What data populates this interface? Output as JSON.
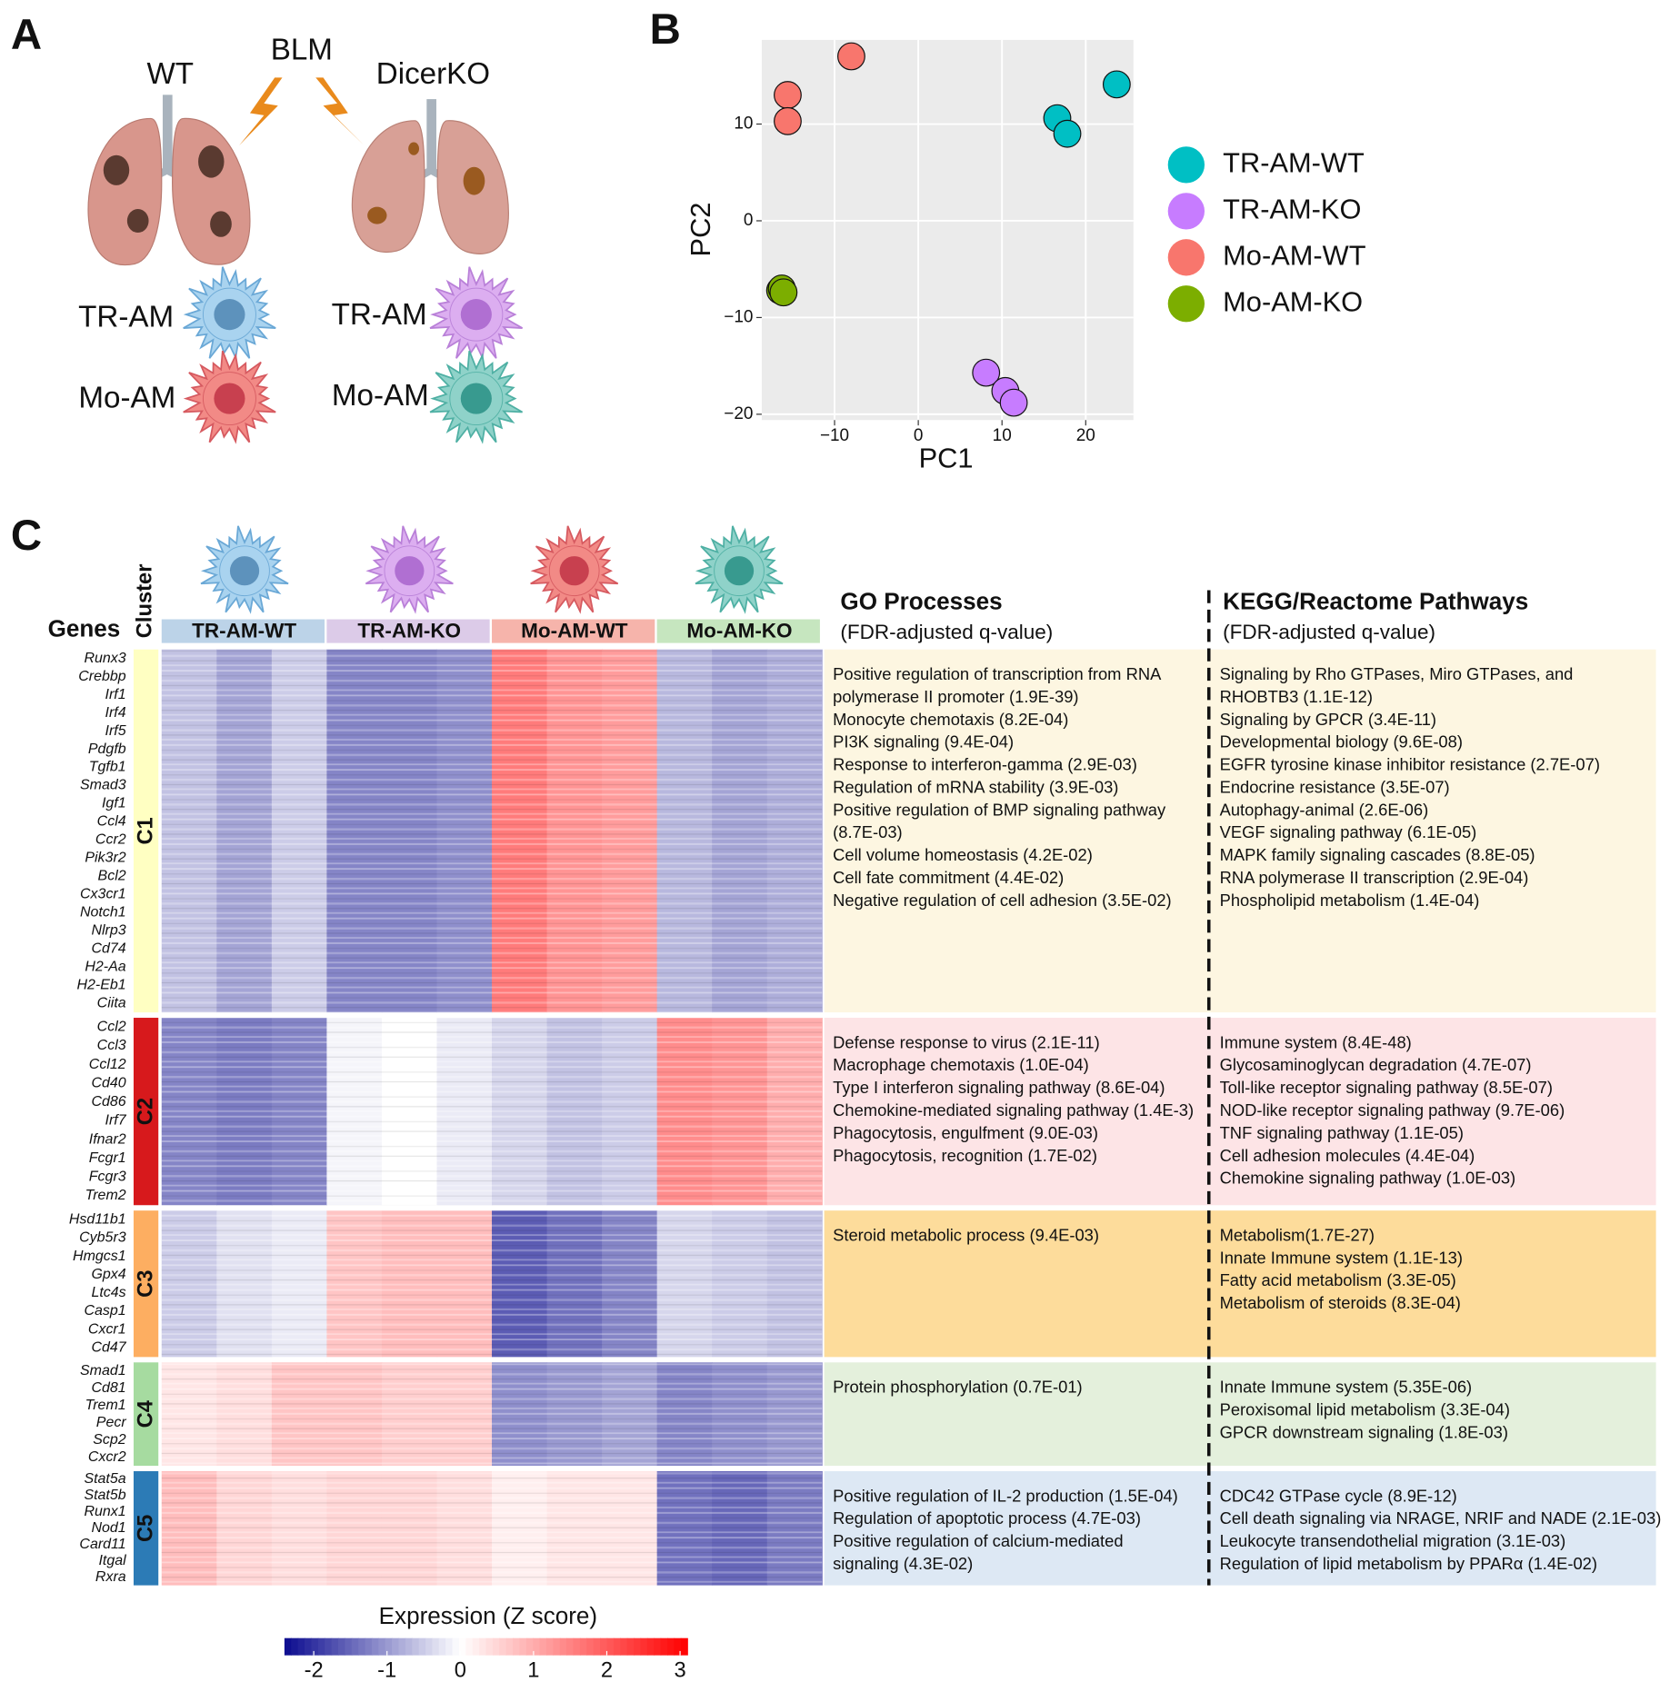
{
  "panel_labels": [
    "A",
    "B",
    "C"
  ],
  "panel_a": {
    "wt": "WT",
    "blm": "BLM",
    "ko": "DicerKO",
    "cells": [
      "TR-AM",
      "Mo-AM",
      "TR-AM",
      "Mo-AM"
    ]
  },
  "chart_data": {
    "type": "scatter",
    "xlabel": "PC1",
    "ylabel": "PC2",
    "xlim": [
      -18.7,
      25.7
    ],
    "ylim": [
      -20.6,
      18.7
    ],
    "xticks": [
      {
        "value": -10,
        "label": "−10"
      },
      0,
      10,
      20
    ],
    "yticks": [
      {
        "value": -20,
        "label": "−20"
      },
      {
        "value": -10,
        "label": "−10"
      },
      0,
      10
    ],
    "grid": true,
    "legend": "right",
    "series": [
      {
        "name": "TR-AM-WT",
        "color": "#00bfc4",
        "x": [
          16.6,
          17.8,
          23.7
        ],
        "values": [
          10.6,
          9.0,
          14.1
        ]
      },
      {
        "name": "TR-AM-KO",
        "color": "#c77cff",
        "x": [
          8.1,
          10.4,
          11.4
        ],
        "values": [
          -15.7,
          -17.6,
          -18.8
        ]
      },
      {
        "name": "Mo-AM-WT",
        "color": "#f8766d",
        "x": [
          -15.6,
          -15.6,
          -8.0
        ],
        "values": [
          13.0,
          10.3,
          17.0
        ]
      },
      {
        "name": "Mo-AM-KO",
        "color": "#7cae00",
        "x": [
          -16.5,
          -16.3,
          -16.1
        ],
        "values": [
          -7.2,
          -7.0,
          -7.4
        ]
      }
    ]
  },
  "panel_c": {
    "genes_label": "Genes",
    "cluster_label": "Cluster",
    "go_title": "GO Processes",
    "go_subtitle": "(FDR-adjusted q-value)",
    "kegg_title": "KEGG/Reactome Pathways",
    "kegg_subtitle": "(FDR-adjusted q-value)",
    "samples": [
      "TR-AM-WT",
      "TR-AM-KO",
      "Mo-AM-WT",
      "Mo-AM-KO"
    ],
    "sample_colors": [
      "#bcd3e8",
      "#dccbe8",
      "#f6b4ab",
      "#c6e6bf"
    ],
    "clusters": [
      {
        "name": "C1",
        "color": "#ffffc2",
        "gene_color": "#9a9a1e",
        "panel_color": "#fdf6e1",
        "genes": [
          "Runx3",
          "Crebbp",
          "Irf1",
          "Irf4",
          "Irf5",
          "Pdgfb",
          "Tgfb1",
          "Smad3",
          "Igf1",
          "Ccl4",
          "Ccr2",
          "Pik3r2",
          "Bcl2",
          "Cx3cr1",
          "Notch1",
          "Nlrp3",
          "Cd74",
          "H2-Aa",
          "H2-Eb1",
          "Ciita"
        ],
        "mean_z": [
          -0.6,
          -0.9,
          -0.5,
          -1.2,
          -1.2,
          -1.1,
          1.6,
          1.3,
          1.2,
          -0.7,
          -0.9,
          -0.8
        ],
        "go": [
          "Positive regulation of transcription from RNA",
          "polymerase II promoter (1.9E-39)",
          "Monocyte chemotaxis (8.2E-04)",
          "PI3K signaling (9.4E-04)",
          "Response to interferon-gamma (2.9E-03)",
          "Regulation of mRNA stability (3.9E-03)",
          "Positive regulation of BMP signaling pathway",
          "(8.7E-03)",
          "Cell volume homeostasis (4.2E-02)",
          "Cell fate commitment (4.4E-02)",
          "Negative regulation of cell adhesion (3.5E-02)"
        ],
        "pathways": [
          "Signaling by Rho GTPases, Miro GTPases, and",
          "RHOBTB3 (1.1E-12)",
          "Signaling by GPCR (3.4E-11)",
          "Developmental biology (9.6E-08)",
          "EGFR tyrosine kinase inhibitor resistance (2.7E-07)",
          "Endocrine resistance (3.5E-07)",
          "Autophagy-animal (2.6E-06)",
          "VEGF signaling pathway (6.1E-05)",
          "MAPK family signaling cascades (8.8E-05)",
          "RNA polymerase II transcription (2.9E-04)",
          "Phospholipid metabolism (1.4E-04)"
        ]
      },
      {
        "name": "C2",
        "color": "#d7191c",
        "gene_color": "#b01515",
        "panel_color": "#fde4e6",
        "genes": [
          "Ccl2",
          "Ccl3",
          "Ccl12",
          "Cd40",
          "Cd86",
          "Irf7",
          "Ifnar2",
          "Fcgr1",
          "Fcgr3",
          "Trem2"
        ],
        "mean_z": [
          -1.2,
          -1.3,
          -1.2,
          -0.1,
          0.0,
          -0.2,
          -0.4,
          -0.6,
          -0.5,
          1.4,
          1.3,
          1.0
        ],
        "go": [
          "Defense response to virus (2.1E-11)",
          "Macrophage chemotaxis (1.0E-04)",
          "Type I interferon signaling pathway (8.6E-04)",
          "Chemokine-mediated signaling pathway (1.4E-3)",
          "Phagocytosis, engulfment (9.0E-03)",
          "Phagocytosis, recognition (1.7E-02)"
        ],
        "pathways": [
          "Immune system (8.4E-48)",
          "Glycosaminoglycan degradation (4.7E-07)",
          "Toll-like receptor signaling pathway (8.5E-07)",
          "NOD-like receptor signaling pathway (9.7E-06)",
          "TNF signaling pathway (1.1E-05)",
          "Cell adhesion molecules (4.4E-04)",
          "Chemokine signaling pathway (1.0E-03)"
        ]
      },
      {
        "name": "C3",
        "color": "#fdae61",
        "gene_color": "#e8a030",
        "panel_color": "#fddc9b",
        "genes": [
          "Hsd11b1",
          "Cyb5r3",
          "Hmgcs1",
          "Gpx4",
          "Ltc4s",
          "Casp1",
          "Cxcr1",
          "Cd47"
        ],
        "mean_z": [
          -0.5,
          -0.3,
          -0.2,
          0.7,
          0.8,
          0.8,
          -1.6,
          -1.4,
          -1.2,
          -0.4,
          -0.5,
          -0.6
        ],
        "go": [
          "Steroid metabolic process (9.4E-03)"
        ],
        "pathways": [
          "Metabolism(1.7E-27)",
          "Innate Immune system (1.1E-13)",
          "Fatty acid metabolism (3.3E-05)",
          "Metabolism of steroids (8.3E-04)"
        ]
      },
      {
        "name": "C4",
        "color": "#a6dba0",
        "gene_color": "#3a9e50",
        "panel_color": "#e4f0dc",
        "genes": [
          "Smad1",
          "Cd81",
          "Trem1",
          "Pecr",
          "Scp2",
          "Cxcr2"
        ],
        "mean_z": [
          0.3,
          0.4,
          0.7,
          0.7,
          0.6,
          0.6,
          -1.1,
          -1.0,
          -0.9,
          -1.2,
          -1.1,
          -1.0
        ],
        "go": [
          "Protein phosphorylation (0.7E-01)"
        ],
        "pathways": [
          "Innate Immune system (5.35E-06)",
          "Peroxisomal lipid metabolism (3.3E-04)",
          "GPCR downstream signaling (1.8E-03)"
        ]
      },
      {
        "name": "C5",
        "color": "#2c7bb6",
        "gene_color": "#2222b0",
        "panel_color": "#dde8f4",
        "genes": [
          "Stat5a",
          "Stat5b",
          "Runx1",
          "Nod1",
          "Card11",
          "Itgal",
          "Rxra"
        ],
        "mean_z": [
          0.8,
          0.5,
          0.4,
          0.5,
          0.5,
          0.4,
          0.2,
          0.3,
          0.3,
          -1.4,
          -1.5,
          -1.3
        ],
        "go": [
          "Positive regulation of IL-2 production (1.5E-04)",
          "Regulation of apoptotic process (4.7E-03)",
          "Positive regulation of calcium-mediated",
          "signaling (4.3E-02)"
        ],
        "pathways": [
          "CDC42 GTPase cycle (8.9E-12)",
          "Cell death signaling via NRAGE, NRIF and NADE (2.1E-03)",
          "Leukocyte transendothelial migration (3.1E-03)",
          "Regulation of lipid metabolism by PPARα (1.4E-02)"
        ]
      }
    ],
    "colorbar": {
      "title": "Expression (Z score)",
      "zlim": [
        -2.4,
        3.1
      ],
      "ticks": [
        -2,
        -1,
        0,
        1,
        2,
        3
      ],
      "colors": [
        "#0b0b8f",
        "#ffffff",
        "#ff0000"
      ]
    }
  }
}
